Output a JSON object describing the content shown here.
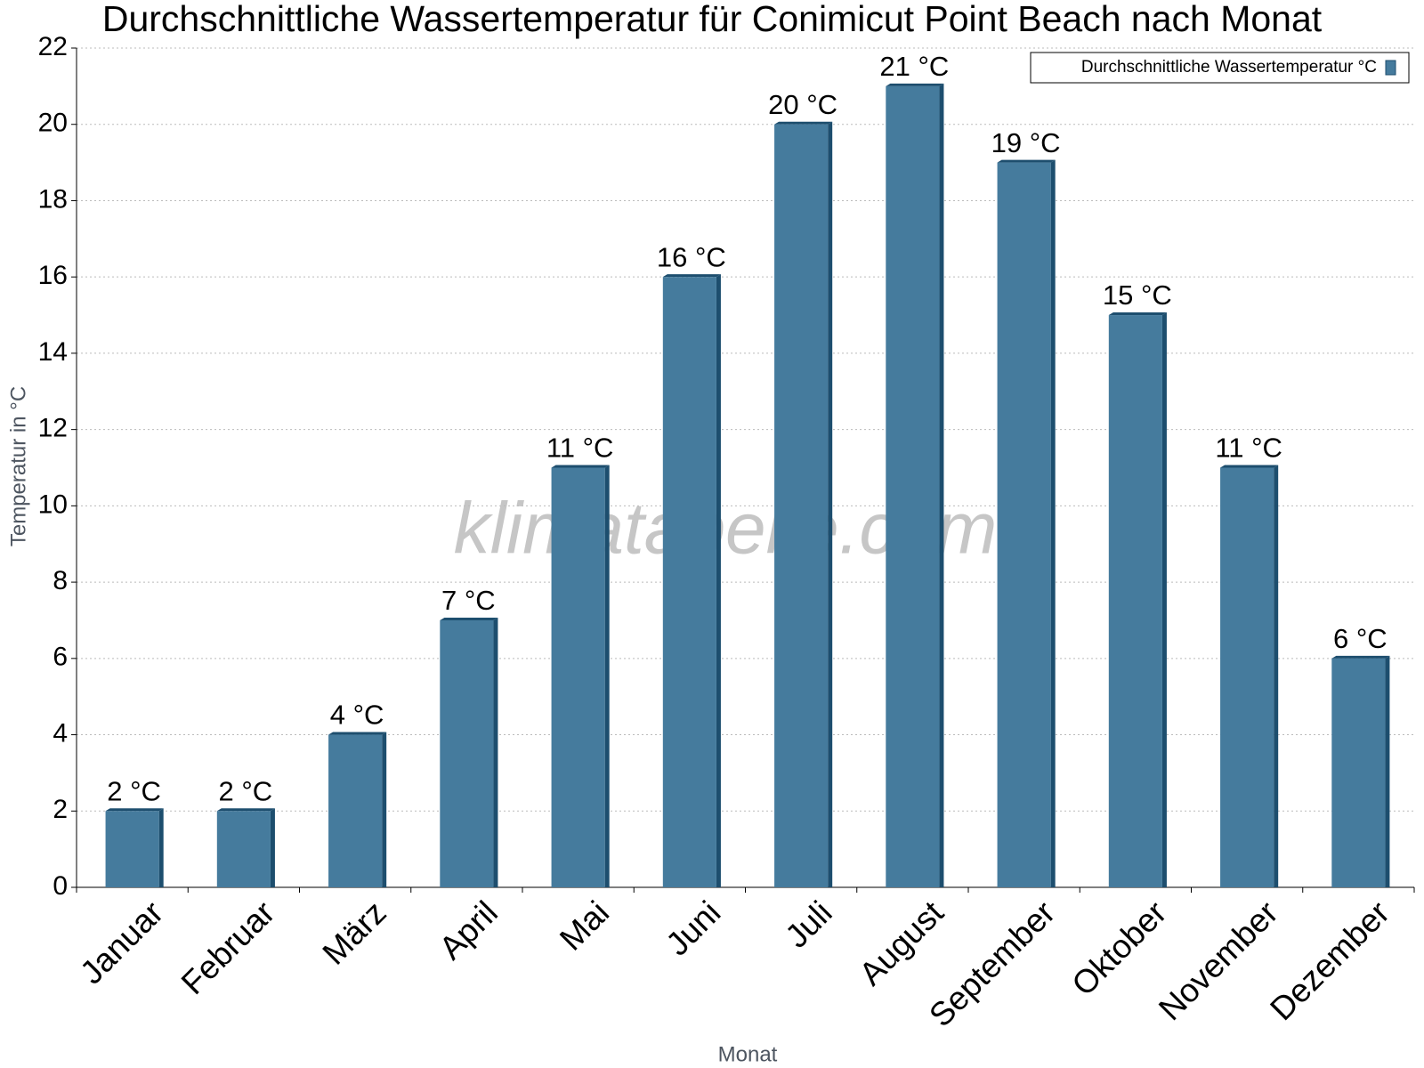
{
  "chart_data": {
    "type": "bar",
    "title": "Durchschnittliche Wassertemperatur für Conimicut Point Beach nach Monat",
    "watermark": "klimatabelle.com",
    "x_label": "Monat",
    "y_label": "Temperatur in °C",
    "categories": [
      "Januar",
      "Februar",
      "März",
      "April",
      "Mai",
      "Juni",
      "Juli",
      "August",
      "September",
      "Oktober",
      "November",
      "Dezember"
    ],
    "series": [
      {
        "name": "Durchschnittliche Wassertemperatur °C",
        "color": "#457b9d",
        "values": [
          2,
          2,
          4,
          7,
          11,
          16,
          20,
          21,
          19,
          15,
          11,
          6
        ],
        "value_labels": [
          "2 °C",
          "2 °C",
          "4 °C",
          "7 °C",
          "11 °C",
          "16 °C",
          "20 °C",
          "21 °C",
          "19 °C",
          "15 °C",
          "11 °C",
          "6 °C"
        ]
      }
    ],
    "ylim": [
      0,
      22
    ],
    "yticks": [
      0,
      2,
      4,
      6,
      8,
      10,
      12,
      14,
      16,
      18,
      20,
      22
    ],
    "grid": true,
    "legend": "top-right"
  }
}
